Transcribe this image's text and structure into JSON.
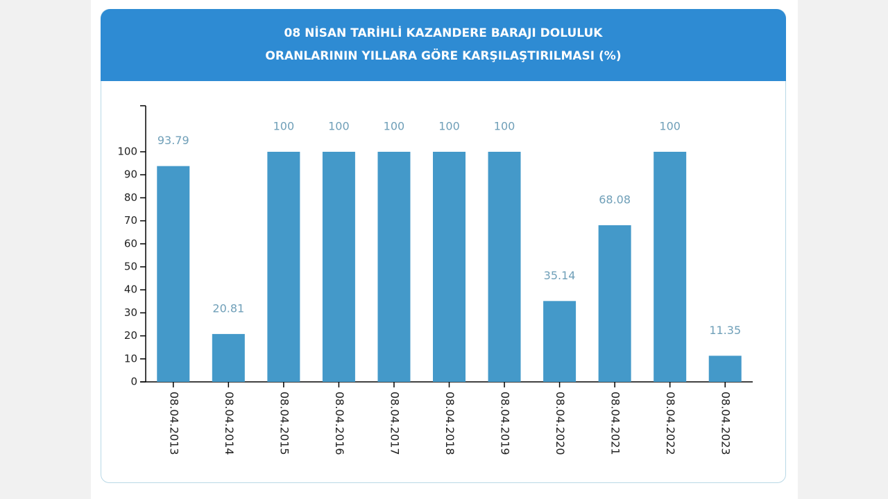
{
  "chart_data": {
    "type": "bar",
    "title": "08 NİSAN TARİHLİ KAZANDERE BARAJI DOLULUK ORANLARININ YILLARA GÖRE KARŞILAŞTIRILMASI (%)",
    "categories": [
      "08.04.2013",
      "08.04.2014",
      "08.04.2015",
      "08.04.2016",
      "08.04.2017",
      "08.04.2018",
      "08.04.2019",
      "08.04.2020",
      "08.04.2021",
      "08.04.2022",
      "08.04.2023"
    ],
    "values": [
      93.79,
      20.81,
      100,
      100,
      100,
      100,
      100,
      35.14,
      68.08,
      100,
      11.35
    ],
    "color": "#4499c9",
    "ylim": [
      0,
      120
    ],
    "yticks": [
      0,
      10,
      20,
      30,
      40,
      50,
      60,
      70,
      80,
      90,
      100
    ],
    "grid": false
  }
}
